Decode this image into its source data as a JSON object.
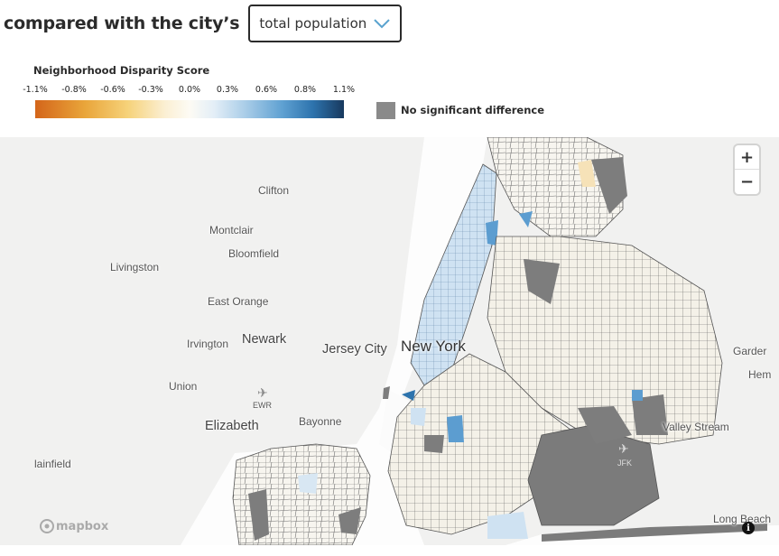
{
  "header": {
    "heading": "compared with the city’s",
    "dropdown_value": "total population"
  },
  "legend": {
    "title": "Neighborhood Disparity Score",
    "ticks": [
      "-1.1%",
      "-0.8%",
      "-0.6%",
      "-0.3%",
      "0.0%",
      "0.3%",
      "0.6%",
      "0.8%",
      "1.1%"
    ],
    "no_difference_label": "No significant difference",
    "no_difference_color": "#8a8a8a",
    "scale_colors": [
      "#d4651a",
      "#f6d27a",
      "#fdfbf4",
      "#5fa1d2",
      "#18395e"
    ]
  },
  "map": {
    "places": {
      "clifton": "Clifton",
      "montclair": "Montclair",
      "bloomfield": "Bloomfield",
      "livingston": "Livingston",
      "east_orange": "East Orange",
      "irvington": "Irvington",
      "newark": "Newark",
      "jersey_city": "Jersey City",
      "new_york": "New York",
      "union": "Union",
      "ewr": "EWR",
      "elizabeth": "Elizabeth",
      "bayonne": "Bayonne",
      "plainfield": "lainfield",
      "garden": "Garder",
      "hem": "Hem",
      "valley_stream": "Valley Stream",
      "jfk": "JFK",
      "long_beach": "Long Beach"
    },
    "zoom_in": "+",
    "zoom_out": "−",
    "attribution": "mapbox",
    "info": "i"
  }
}
